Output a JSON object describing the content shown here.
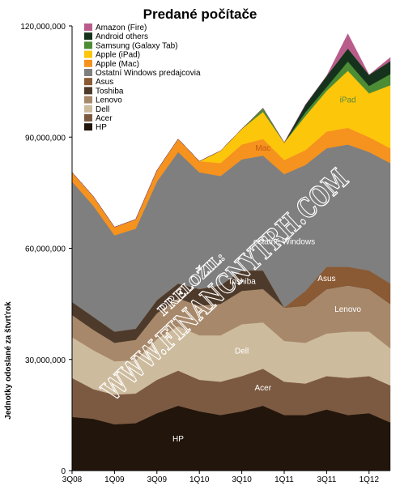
{
  "chart_data": {
    "type": "area",
    "title": "Predané počítače",
    "ylabel": "Jednotky odoslané za štvrťrok",
    "xlabel": "",
    "ylim": [
      0,
      120000000
    ],
    "yticks": [
      "0",
      "30,000,000",
      "60,000,000",
      "90,000,000",
      "120,000,000"
    ],
    "ytick_values": [
      0,
      30000000,
      60000000,
      90000000,
      120000000
    ],
    "x": [
      "3Q08",
      "4Q08",
      "1Q09",
      "2Q09",
      "3Q09",
      "4Q09",
      "1Q10",
      "2Q10",
      "3Q10",
      "4Q10",
      "1Q11",
      "2Q11",
      "3Q11",
      "4Q11",
      "1Q12",
      "2Q12"
    ],
    "xtick_labels": [
      "3Q08",
      "1Q09",
      "3Q09",
      "1Q10",
      "3Q10",
      "1Q11",
      "3Q11",
      "1Q12"
    ],
    "xtick_indices": [
      0,
      2,
      4,
      6,
      8,
      10,
      12,
      14
    ],
    "legend_position": "top-left",
    "series": [
      {
        "name": "HP",
        "color": "#22150b",
        "values": [
          14500000,
          14000000,
          12500000,
          12800000,
          15500000,
          17500000,
          16000000,
          15000000,
          16000000,
          17500000,
          15000000,
          15000000,
          16500000,
          15000000,
          15500000,
          13000000
        ]
      },
      {
        "name": "Acer",
        "color": "#7c5a42",
        "values": [
          10500000,
          8000000,
          8000000,
          8000000,
          9000000,
          9500000,
          8500000,
          9000000,
          9500000,
          10000000,
          9000000,
          8500000,
          9000000,
          10000000,
          10000000,
          10000000
        ]
      },
      {
        "name": "Dell",
        "color": "#cdbb9e",
        "values": [
          11000000,
          10500000,
          9000000,
          9000000,
          11000000,
          12000000,
          12000000,
          12500000,
          14000000,
          12500000,
          11000000,
          11000000,
          11500000,
          12500000,
          12000000,
          10000000
        ]
      },
      {
        "name": "Lenovo",
        "color": "#a7886a",
        "values": [
          6000000,
          5500000,
          5000000,
          5500000,
          7000000,
          7500000,
          8000000,
          8500000,
          9000000,
          9000000,
          9000000,
          10000000,
          12000000,
          12500000,
          11500000,
          12000000
        ]
      },
      {
        "name": "Toshiba",
        "color": "#4e3a2a",
        "values": [
          3500000,
          3500000,
          3000000,
          3000000,
          3500000,
          4000000,
          4500000,
          5000000,
          5500000,
          5000000,
          0,
          0,
          0,
          0,
          0,
          0
        ]
      },
      {
        "name": "Asus",
        "color": "#8a5a34",
        "values": [
          0,
          0,
          0,
          0,
          0,
          0,
          0,
          0,
          0,
          0,
          0,
          4000000,
          6000000,
          5000000,
          5000000,
          5500000
        ]
      },
      {
        "name": "Ostatní Windows predajcovia",
        "color": "#7f7f7f",
        "values": [
          32500000,
          30000000,
          26000000,
          27000000,
          32000000,
          35500000,
          31500000,
          29500000,
          30000000,
          31000000,
          36000000,
          34000000,
          32000000,
          33000000,
          32000000,
          32500000
        ]
      },
      {
        "name": "Apple (Mac)",
        "color": "#f6921e",
        "values": [
          2500000,
          2500000,
          2200000,
          2500000,
          3000000,
          3500000,
          3000000,
          3500000,
          4000000,
          4500000,
          3800000,
          4000000,
          4500000,
          4500000,
          4000000,
          4000000
        ]
      },
      {
        "name": "Apple (iPad)",
        "color": "#fcc60a",
        "values": [
          0,
          0,
          0,
          0,
          0,
          0,
          0,
          3300000,
          4200000,
          7300000,
          4700000,
          9200000,
          11000000,
          15400000,
          11800000,
          17000000
        ]
      },
      {
        "name": "Samsung (Galaxy Tab)",
        "color": "#4c8c35",
        "values": [
          0,
          0,
          0,
          0,
          0,
          0,
          0,
          0,
          0,
          1000000,
          0,
          1000000,
          1000000,
          2500000,
          2000000,
          3000000
        ]
      },
      {
        "name": "Android others",
        "color": "#15331c",
        "values": [
          0,
          0,
          0,
          0,
          0,
          0,
          0,
          0,
          0,
          0,
          0,
          2000000,
          3000000,
          3500000,
          3000000,
          3500000
        ]
      },
      {
        "name": "Amazon (Fire)",
        "color": "#b85d8b",
        "values": [
          0,
          0,
          0,
          0,
          0,
          0,
          0,
          0,
          0,
          0,
          0,
          0,
          0,
          4000000,
          0,
          1000000
        ]
      }
    ],
    "area_labels": [
      {
        "text": "iPad",
        "series": "Apple (iPad)",
        "color": "#5a8a3a"
      },
      {
        "text": "Mac",
        "series": "Apple (Mac)",
        "color": "#c45a12"
      },
      {
        "text": "ostatné Windows",
        "series": "Ostatní Windows predajcovia",
        "color": "#ffffff"
      },
      {
        "text": "Toshiba",
        "series": "Toshiba",
        "color": "#ffffff"
      },
      {
        "text": "Asus",
        "series": "Asus",
        "color": "#ffffff"
      },
      {
        "text": "Lenovo",
        "series": "Lenovo",
        "color": "#ffffff"
      },
      {
        "text": "Dell",
        "series": "Dell",
        "color": "#ffffff"
      },
      {
        "text": "Acer",
        "series": "Acer",
        "color": "#ffffff"
      },
      {
        "text": "HP",
        "series": "HP",
        "color": "#ffffff"
      }
    ],
    "grid": false
  },
  "watermark": {
    "line1": "PRELOŽIL:",
    "line2": "WWW.FINANCNYTRH.COM"
  }
}
